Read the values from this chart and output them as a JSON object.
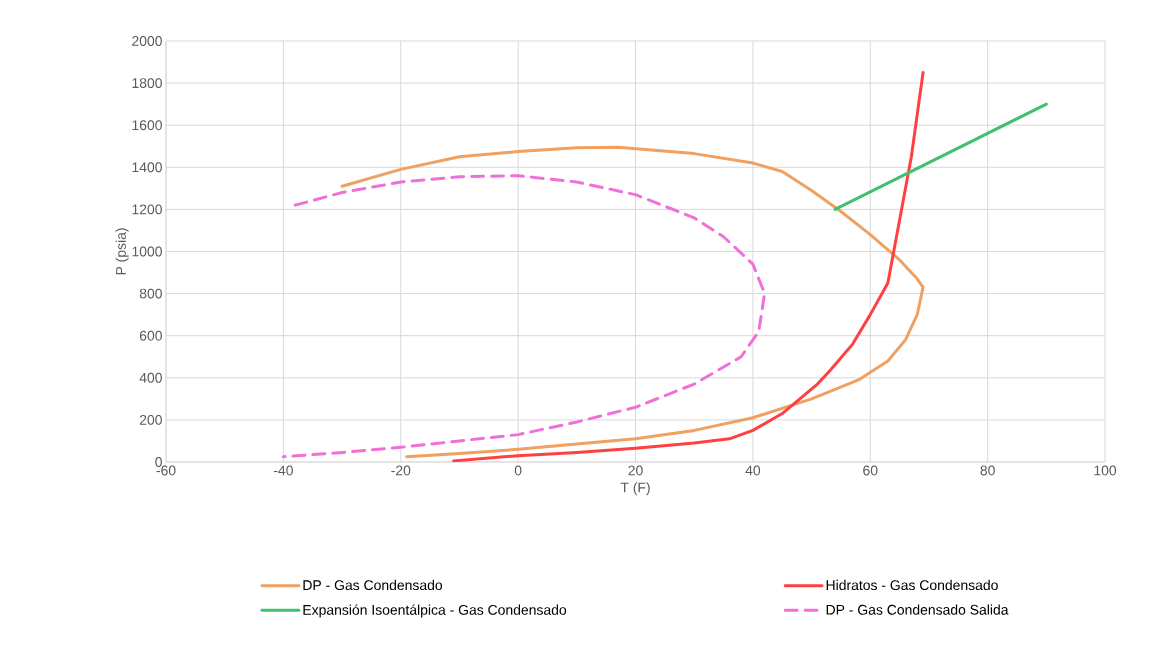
{
  "chart_data": {
    "type": "line",
    "xlabel": "T (F)",
    "ylabel": "P (psia)",
    "xlim": [
      -60,
      100
    ],
    "xticks": [
      -60,
      -40,
      -20,
      0,
      20,
      40,
      60,
      80,
      100
    ],
    "ylim": [
      0,
      2000
    ],
    "yticks": [
      0,
      200,
      400,
      600,
      800,
      1000,
      1200,
      1400,
      1600,
      1800,
      2000
    ],
    "grid": true,
    "legend": "bottom",
    "marker": "none",
    "series": [
      {
        "name": "DP - Gas Condensado",
        "color": "#f0a060",
        "line_style": "solid",
        "x": [
          -30,
          -20,
          -10,
          0,
          10,
          17,
          30,
          40,
          45,
          50,
          55,
          60,
          65,
          68,
          69,
          68,
          66,
          63,
          58,
          50,
          40,
          30,
          20,
          10,
          0,
          -10,
          -19
        ],
        "values": [
          1310,
          1390,
          1450,
          1475,
          1493,
          1495,
          1465,
          1420,
          1380,
          1290,
          1190,
          1080,
          960,
          870,
          830,
          700,
          580,
          480,
          390,
          300,
          210,
          150,
          110,
          85,
          60,
          40,
          25
        ]
      },
      {
        "name": "Hidratos - Gas Condensado",
        "color": "#ff4040",
        "line_style": "solid",
        "x": [
          -11,
          0,
          10,
          20,
          30,
          36,
          40,
          45,
          51,
          53,
          57,
          60,
          63,
          64,
          65,
          66,
          67,
          68,
          69
        ],
        "values": [
          5,
          30,
          45,
          65,
          90,
          110,
          150,
          230,
          370,
          430,
          560,
          700,
          850,
          1000,
          1150,
          1300,
          1450,
          1650,
          1850
        ]
      },
      {
        "name": "Expansión Isoentálpica - Gas Condensado",
        "color": "#40c070",
        "line_style": "solid",
        "x": [
          54,
          90
        ],
        "values": [
          1200,
          1700
        ]
      },
      {
        "name": "DP - Gas Condensado Salida",
        "color": "#f070d8",
        "line_style": "dashed",
        "x": [
          -38,
          -30,
          -20,
          -10,
          0,
          10,
          20,
          30,
          35,
          40,
          42,
          41,
          38,
          30,
          20,
          10,
          0,
          -10,
          -20,
          -30,
          -40
        ],
        "values": [
          1220,
          1280,
          1330,
          1355,
          1360,
          1330,
          1270,
          1160,
          1070,
          940,
          800,
          620,
          500,
          370,
          260,
          190,
          130,
          100,
          70,
          45,
          25
        ]
      }
    ]
  }
}
